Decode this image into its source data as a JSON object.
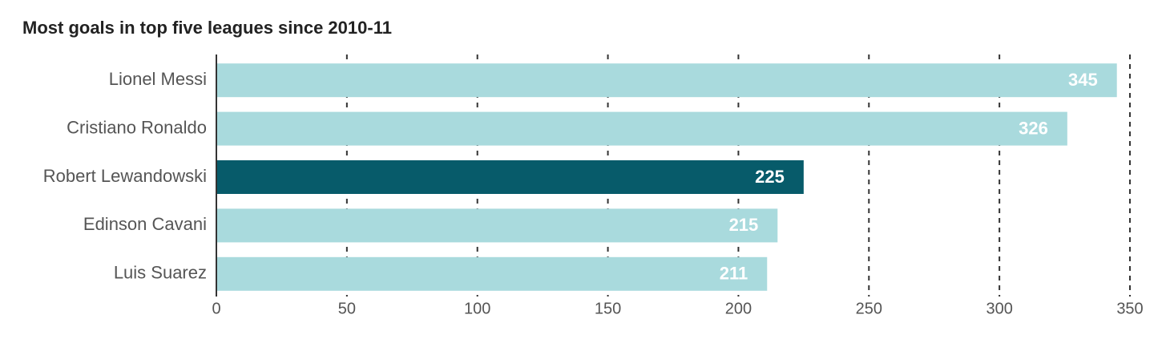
{
  "chart_data": {
    "type": "bar",
    "orientation": "horizontal",
    "title": "Most goals in top five leagues since 2010-11",
    "categories": [
      "Lionel Messi",
      "Cristiano Ronaldo",
      "Robert Lewandowski",
      "Edinson Cavani",
      "Luis Suarez"
    ],
    "values": [
      345,
      326,
      225,
      215,
      211
    ],
    "colors": [
      "#a9dadd",
      "#a9dadd",
      "#075b6a",
      "#a9dadd",
      "#a9dadd"
    ],
    "xlim": [
      0,
      350
    ],
    "xticks": [
      0,
      50,
      100,
      150,
      200,
      250,
      300,
      350
    ],
    "grid": true
  }
}
